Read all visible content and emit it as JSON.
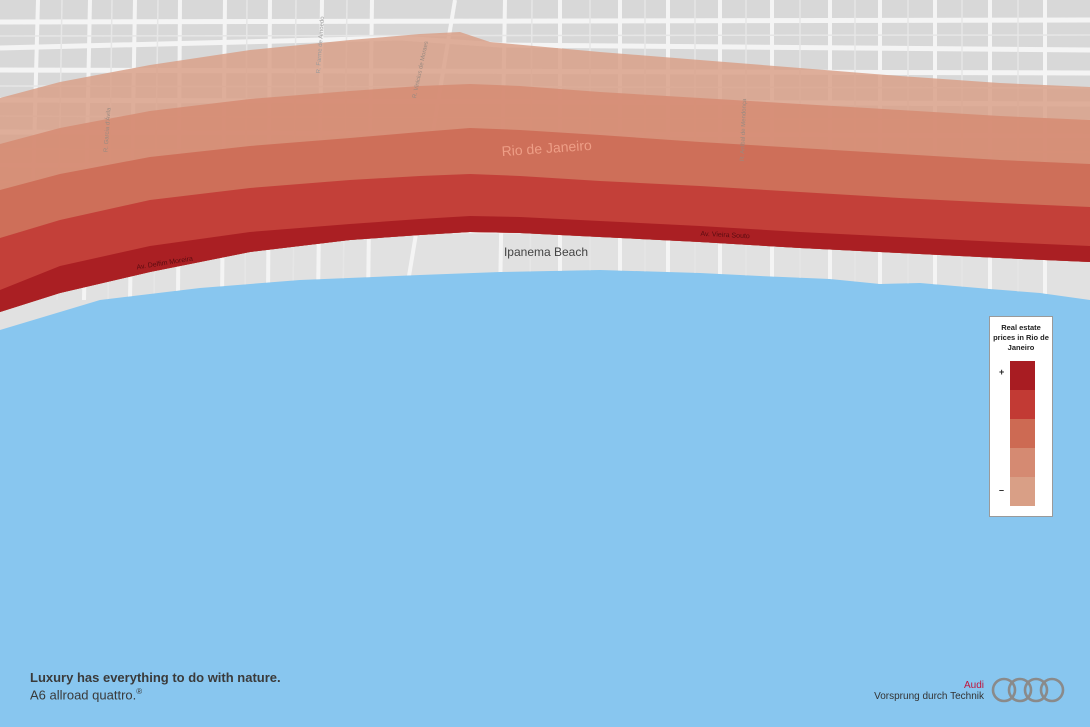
{
  "map": {
    "city_label": "Rio de Janeiro",
    "beach_label": "Ipanema Beach",
    "street_labels": [
      {
        "id": "av-delfim-moreira",
        "text": "Av. Delfim Moreira"
      },
      {
        "id": "av-vieira-souto",
        "text": "Av. Vieira Souto"
      },
      {
        "id": "rua-garcia-davila",
        "text": "R. Garcia d'Ávila"
      },
      {
        "id": "rua-farme-amoedo",
        "text": "R. Farme de Amoedo"
      },
      {
        "id": "rua-vinicius-de-moraes",
        "text": "R. Vinicius de Moraes"
      },
      {
        "id": "rua-aníbal-de-mendonca",
        "text": "R. Aníbal de Mendonça"
      }
    ],
    "colors": {
      "ocean": "#88c6ef",
      "sand": "#e1e1e1",
      "land": "#d8d8d8",
      "roads": "#f4f4f4",
      "band_1": "#d99f86",
      "band_2": "#d58a72",
      "band_3": "#cd6a53",
      "band_4": "#c23a34",
      "band_5": "#a81c22"
    }
  },
  "legend": {
    "title": "Real estate prices in Rio de Janeiro",
    "plus_label": "+",
    "minus_label": "–",
    "levels": [
      "#a81c22",
      "#c23a34",
      "#cd6a53",
      "#d58a72",
      "#d99f86"
    ]
  },
  "footer": {
    "slogan": "Luxury has everything to do with nature.",
    "model": "A6 allroad quattro.",
    "model_mark": "®",
    "brand": "Audi",
    "tagline": "Vorsprung durch Technik"
  }
}
